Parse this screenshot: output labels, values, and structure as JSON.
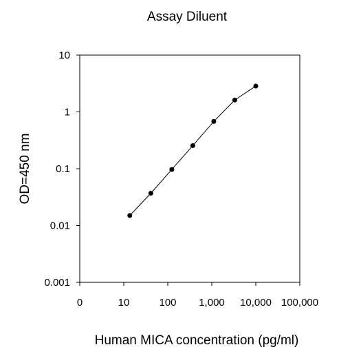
{
  "chart_data": {
    "type": "line",
    "title": "Assay Diluent",
    "xlabel": "Human MICA concentration (pg/ml)",
    "ylabel": "OD=450 nm",
    "x_scale": "log",
    "y_scale": "log",
    "xlim": [
      1,
      100000
    ],
    "ylim": [
      0.001,
      10
    ],
    "x_ticks": [
      {
        "value": 1,
        "label": "0"
      },
      {
        "value": 10,
        "label": "10"
      },
      {
        "value": 100,
        "label": "100"
      },
      {
        "value": 1000,
        "label": "1,000"
      },
      {
        "value": 10000,
        "label": "10,000"
      },
      {
        "value": 100000,
        "label": "100,000"
      }
    ],
    "y_ticks": [
      {
        "value": 0.001,
        "label": "0.001"
      },
      {
        "value": 0.01,
        "label": "0.01"
      },
      {
        "value": 0.1,
        "label": "0.1"
      },
      {
        "value": 1,
        "label": "1"
      },
      {
        "value": 10,
        "label": "10"
      }
    ],
    "grid": false,
    "series": [
      {
        "x": [
          13.7,
          41.2,
          123.5,
          370.4,
          1111,
          3333,
          10000
        ],
        "y": [
          0.015,
          0.037,
          0.097,
          0.255,
          0.68,
          1.62,
          2.85
        ]
      }
    ]
  }
}
